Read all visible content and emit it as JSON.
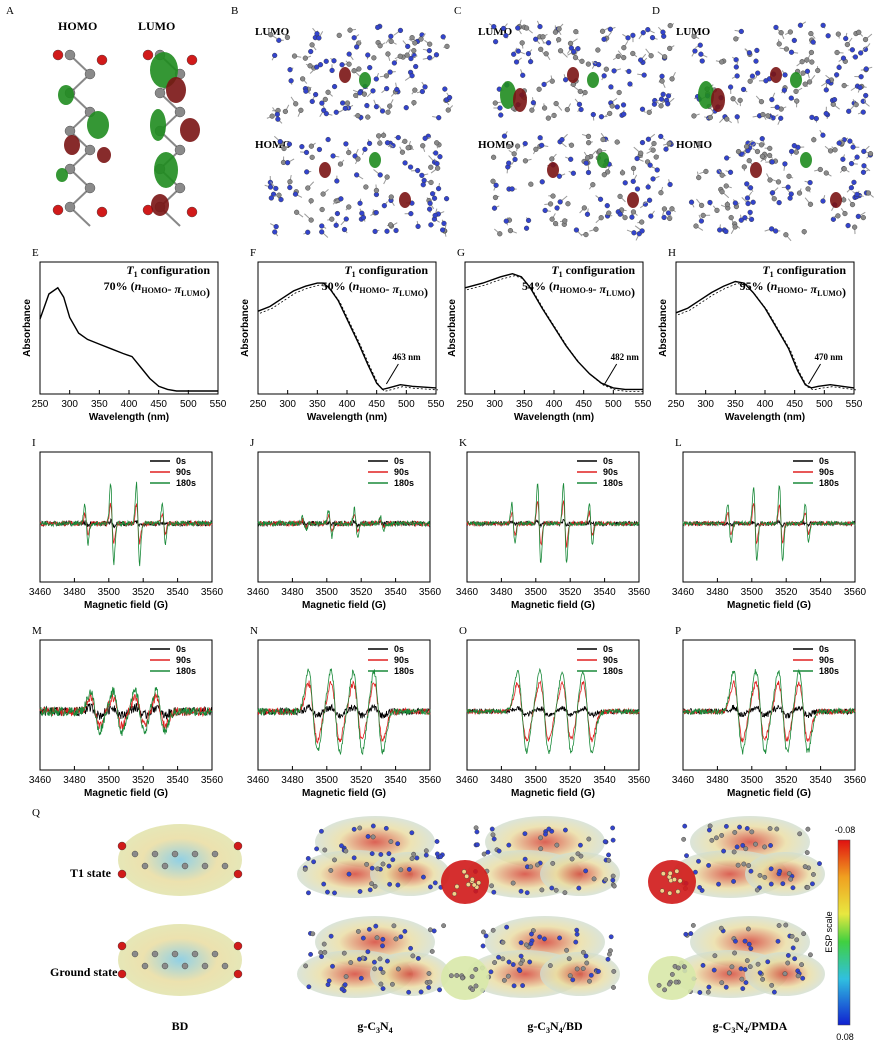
{
  "row1": {
    "panels": [
      {
        "letter": "A",
        "labels": [
          "HOMO",
          "LUMO"
        ]
      },
      {
        "letter": "B",
        "labels": [
          "LUMO",
          "HOMO"
        ]
      },
      {
        "letter": "C",
        "labels": [
          "LUMO",
          "HOMO"
        ]
      },
      {
        "letter": "D",
        "labels": [
          "LUMO",
          "HOMO"
        ]
      }
    ]
  },
  "absorbance": {
    "ylabel": "Absorbance",
    "xlabel": "Wavelength (nm)",
    "xticks": [
      250,
      300,
      350,
      400,
      450,
      500,
      550
    ],
    "config_title_prefix": "T",
    "config_title_sub": "1",
    "config_title_suffix": " configuration",
    "panels": [
      {
        "letter": "E",
        "percent": "70% (",
        "pieces": [
          {
            "t": "n",
            "s": "HOMO"
          },
          {
            "t": "- π",
            "s": "LUMO"
          }
        ],
        "annotation": "",
        "curve": [
          [
            250,
            0.46
          ],
          [
            265,
            0.62
          ],
          [
            280,
            0.66
          ],
          [
            290,
            0.6
          ],
          [
            300,
            0.47
          ],
          [
            315,
            0.37
          ],
          [
            330,
            0.33
          ],
          [
            350,
            0.3
          ],
          [
            370,
            0.27
          ],
          [
            390,
            0.24
          ],
          [
            405,
            0.22
          ],
          [
            420,
            0.15
          ],
          [
            435,
            0.08
          ],
          [
            450,
            0.03
          ],
          [
            465,
            0.01
          ],
          [
            480,
            0.0
          ],
          [
            550,
            0.0
          ]
        ]
      },
      {
        "letter": "F",
        "percent": "50% (",
        "pieces": [
          {
            "t": "n",
            "s": "HOMO"
          },
          {
            "t": "- π",
            "s": "LUMO"
          }
        ],
        "annotation": "463 nm",
        "curve": [
          [
            250,
            0.51
          ],
          [
            270,
            0.54
          ],
          [
            290,
            0.59
          ],
          [
            310,
            0.64
          ],
          [
            330,
            0.67
          ],
          [
            350,
            0.69
          ],
          [
            360,
            0.69
          ],
          [
            370,
            0.66
          ],
          [
            385,
            0.58
          ],
          [
            400,
            0.46
          ],
          [
            420,
            0.3
          ],
          [
            435,
            0.17
          ],
          [
            450,
            0.05
          ],
          [
            460,
            0.01
          ],
          [
            470,
            0.02
          ],
          [
            490,
            0.04
          ],
          [
            510,
            0.03
          ],
          [
            550,
            0.02
          ]
        ]
      },
      {
        "letter": "G",
        "percent": "54% (",
        "pieces": [
          {
            "t": "n",
            "s": "HOMO-9"
          },
          {
            "t": "- π",
            "s": "LUMO"
          }
        ],
        "annotation": "482 nm",
        "curve": [
          [
            250,
            0.66
          ],
          [
            280,
            0.69
          ],
          [
            310,
            0.73
          ],
          [
            330,
            0.75
          ],
          [
            345,
            0.73
          ],
          [
            360,
            0.66
          ],
          [
            380,
            0.53
          ],
          [
            400,
            0.41
          ],
          [
            420,
            0.29
          ],
          [
            440,
            0.19
          ],
          [
            460,
            0.11
          ],
          [
            480,
            0.05
          ],
          [
            500,
            0.02
          ],
          [
            520,
            0.01
          ],
          [
            550,
            0.01
          ]
        ]
      },
      {
        "letter": "H",
        "percent": "95% (",
        "pieces": [
          {
            "t": "n",
            "s": "HOMO"
          },
          {
            "t": "- π",
            "s": "LUMO"
          }
        ],
        "annotation": "470 nm",
        "curve": [
          [
            250,
            0.5
          ],
          [
            270,
            0.53
          ],
          [
            290,
            0.58
          ],
          [
            310,
            0.63
          ],
          [
            330,
            0.67
          ],
          [
            350,
            0.7
          ],
          [
            365,
            0.69
          ],
          [
            380,
            0.63
          ],
          [
            400,
            0.53
          ],
          [
            420,
            0.4
          ],
          [
            440,
            0.27
          ],
          [
            455,
            0.13
          ],
          [
            468,
            0.04
          ],
          [
            478,
            0.02
          ],
          [
            490,
            0.03
          ],
          [
            510,
            0.04
          ],
          [
            530,
            0.03
          ],
          [
            550,
            0.02
          ]
        ]
      }
    ]
  },
  "epr": {
    "xlabel": "Magnetic field (G)",
    "xticks": [
      3460,
      3480,
      3500,
      3520,
      3540,
      3560
    ],
    "legend": [
      "0s",
      "90s",
      "180s"
    ],
    "panels": [
      {
        "letter": "I",
        "amp": [
          0.05,
          0.5,
          1.0
        ],
        "style": "dmpo",
        "centers": [
          3487,
          3502,
          3517,
          3532
        ],
        "weights": [
          0.5,
          1,
          1,
          0.5
        ],
        "noise": 0.12
      },
      {
        "letter": "J",
        "amp": [
          0.05,
          0.2,
          0.35
        ],
        "style": "dmpo",
        "centers": [
          3487,
          3502,
          3517,
          3532
        ],
        "weights": [
          0.5,
          1,
          1,
          0.5
        ],
        "noise": 0.12
      },
      {
        "letter": "K",
        "amp": [
          0.05,
          0.55,
          1.0
        ],
        "style": "dmpo",
        "centers": [
          3487,
          3502,
          3517,
          3532
        ],
        "weights": [
          0.5,
          1,
          1,
          0.5
        ],
        "noise": 0.1
      },
      {
        "letter": "L",
        "amp": [
          0.05,
          0.5,
          0.95
        ],
        "style": "dmpo",
        "centers": [
          3487,
          3502,
          3517,
          3532
        ],
        "weights": [
          0.5,
          1,
          1,
          0.5
        ],
        "noise": 0.1
      },
      {
        "letter": "M",
        "amp": [
          0.1,
          0.35,
          0.5
        ],
        "style": "wide",
        "centers": [
          3492,
          3505,
          3518,
          3530
        ],
        "weights": [
          1,
          1,
          1,
          1
        ],
        "noise": 0.22
      },
      {
        "letter": "N",
        "amp": [
          0.1,
          0.7,
          1.0
        ],
        "style": "wide",
        "centers": [
          3492,
          3505,
          3518,
          3530
        ],
        "weights": [
          1,
          1,
          1,
          1
        ],
        "noise": 0.16
      },
      {
        "letter": "O",
        "amp": [
          0.08,
          0.7,
          1.0
        ],
        "style": "wide",
        "centers": [
          3492,
          3505,
          3518,
          3530
        ],
        "weights": [
          1,
          1,
          1,
          1
        ],
        "noise": 0.12
      },
      {
        "letter": "P",
        "amp": [
          0.1,
          0.7,
          1.0
        ],
        "style": "wide",
        "centers": [
          3492,
          3505,
          3518,
          3530
        ],
        "weights": [
          1,
          1,
          1,
          1
        ],
        "noise": 0.14
      }
    ]
  },
  "esp": {
    "letter": "Q",
    "row_labels": [
      "T1 state",
      "Ground state"
    ],
    "captions": [
      "BD",
      "g-C",
      "3",
      "N",
      "4",
      "/BD",
      "/PMDA"
    ],
    "colorbar_label": "ESP scale",
    "colorbar_top": "-0.08",
    "colorbar_bottom": "0.08"
  },
  "colors": {
    "orbital_red": "#7a1414",
    "orbital_green": "#1f8c1f",
    "atom_blue": "#3344cc",
    "atom_gray": "#8a8a8a",
    "atom_red": "#d11a1a",
    "epr_black": "#000000",
    "epr_red": "#e02020",
    "epr_green": "#1a8a3a"
  }
}
